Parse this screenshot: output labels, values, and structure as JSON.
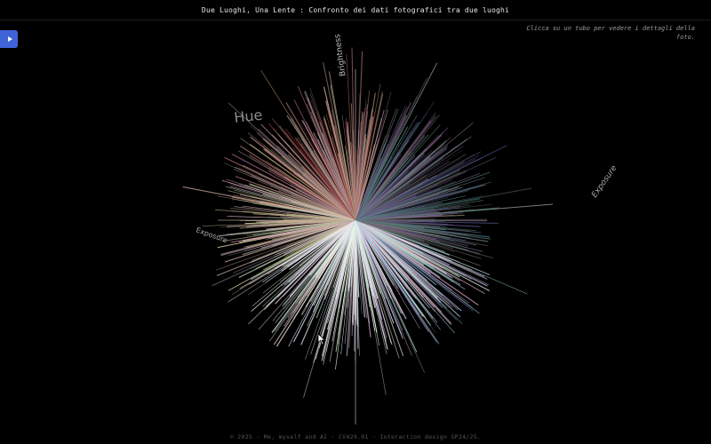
{
  "header": {
    "title": "Due Luoghi, Una Lente : Confronto dei dati fotografici tra due luoghi"
  },
  "sidebar_toggle": {
    "icon": "play-triangle-icon"
  },
  "hint": {
    "text": "Clicca su un tubo per vedere i dettagli della foto."
  },
  "axes": {
    "top": "Brightness",
    "left": "Exposure",
    "right": "Exposure",
    "hue": "Hue"
  },
  "footer": {
    "text": "© 2025 · Me, myself and AI · CV429.01 · Interaction design SP24/25."
  },
  "colors": {
    "background": "#000000",
    "toggle": "#3f64d8",
    "axis": "#8a8a8a"
  },
  "cursor": {
    "icon": "mouse-pointer-icon"
  }
}
